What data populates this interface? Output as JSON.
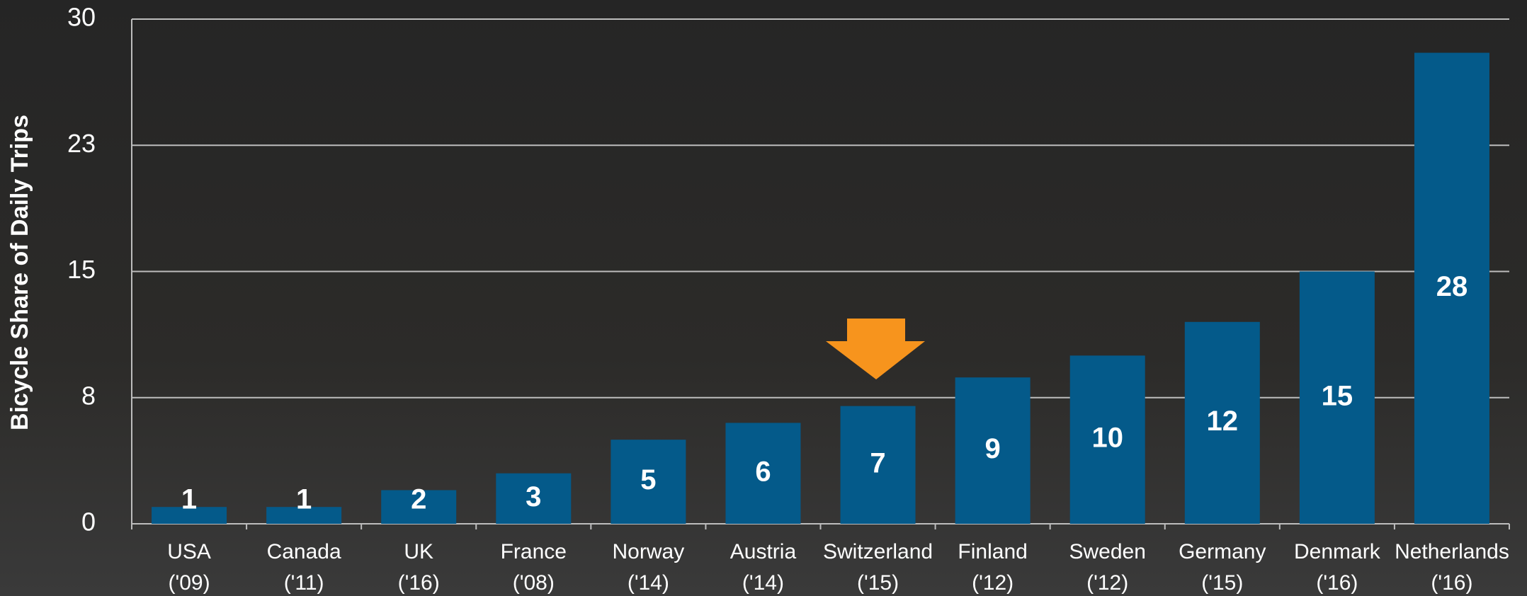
{
  "chart_data": {
    "type": "bar",
    "y_label": "Bicycle Share of Daily Trips",
    "categories": [
      "USA ('09)",
      "Canada ('11)",
      "UK ('16)",
      "France ('08)",
      "Norway ('14)",
      "Austria ('14)",
      "Switzerland ('15)",
      "Finland ('12)",
      "Sweden ('12)",
      "Germany ('15)",
      "Denmark ('16)",
      "Netherlands ('16)"
    ],
    "values": [
      1,
      1,
      2,
      3,
      5,
      6,
      7,
      8.7,
      10,
      12,
      15,
      28
    ],
    "value_labels": [
      "1",
      "1",
      "2",
      "3",
      "5",
      "6",
      "7",
      "9",
      "10",
      "12",
      "15",
      "28"
    ],
    "color": "#045a8a",
    "ylim": [
      0,
      30
    ],
    "yticks": [
      0,
      {
        "value": 7.5,
        "label": "8"
      },
      15,
      {
        "value": 22.5,
        "label": "23"
      },
      30
    ],
    "grid": true
  }
}
